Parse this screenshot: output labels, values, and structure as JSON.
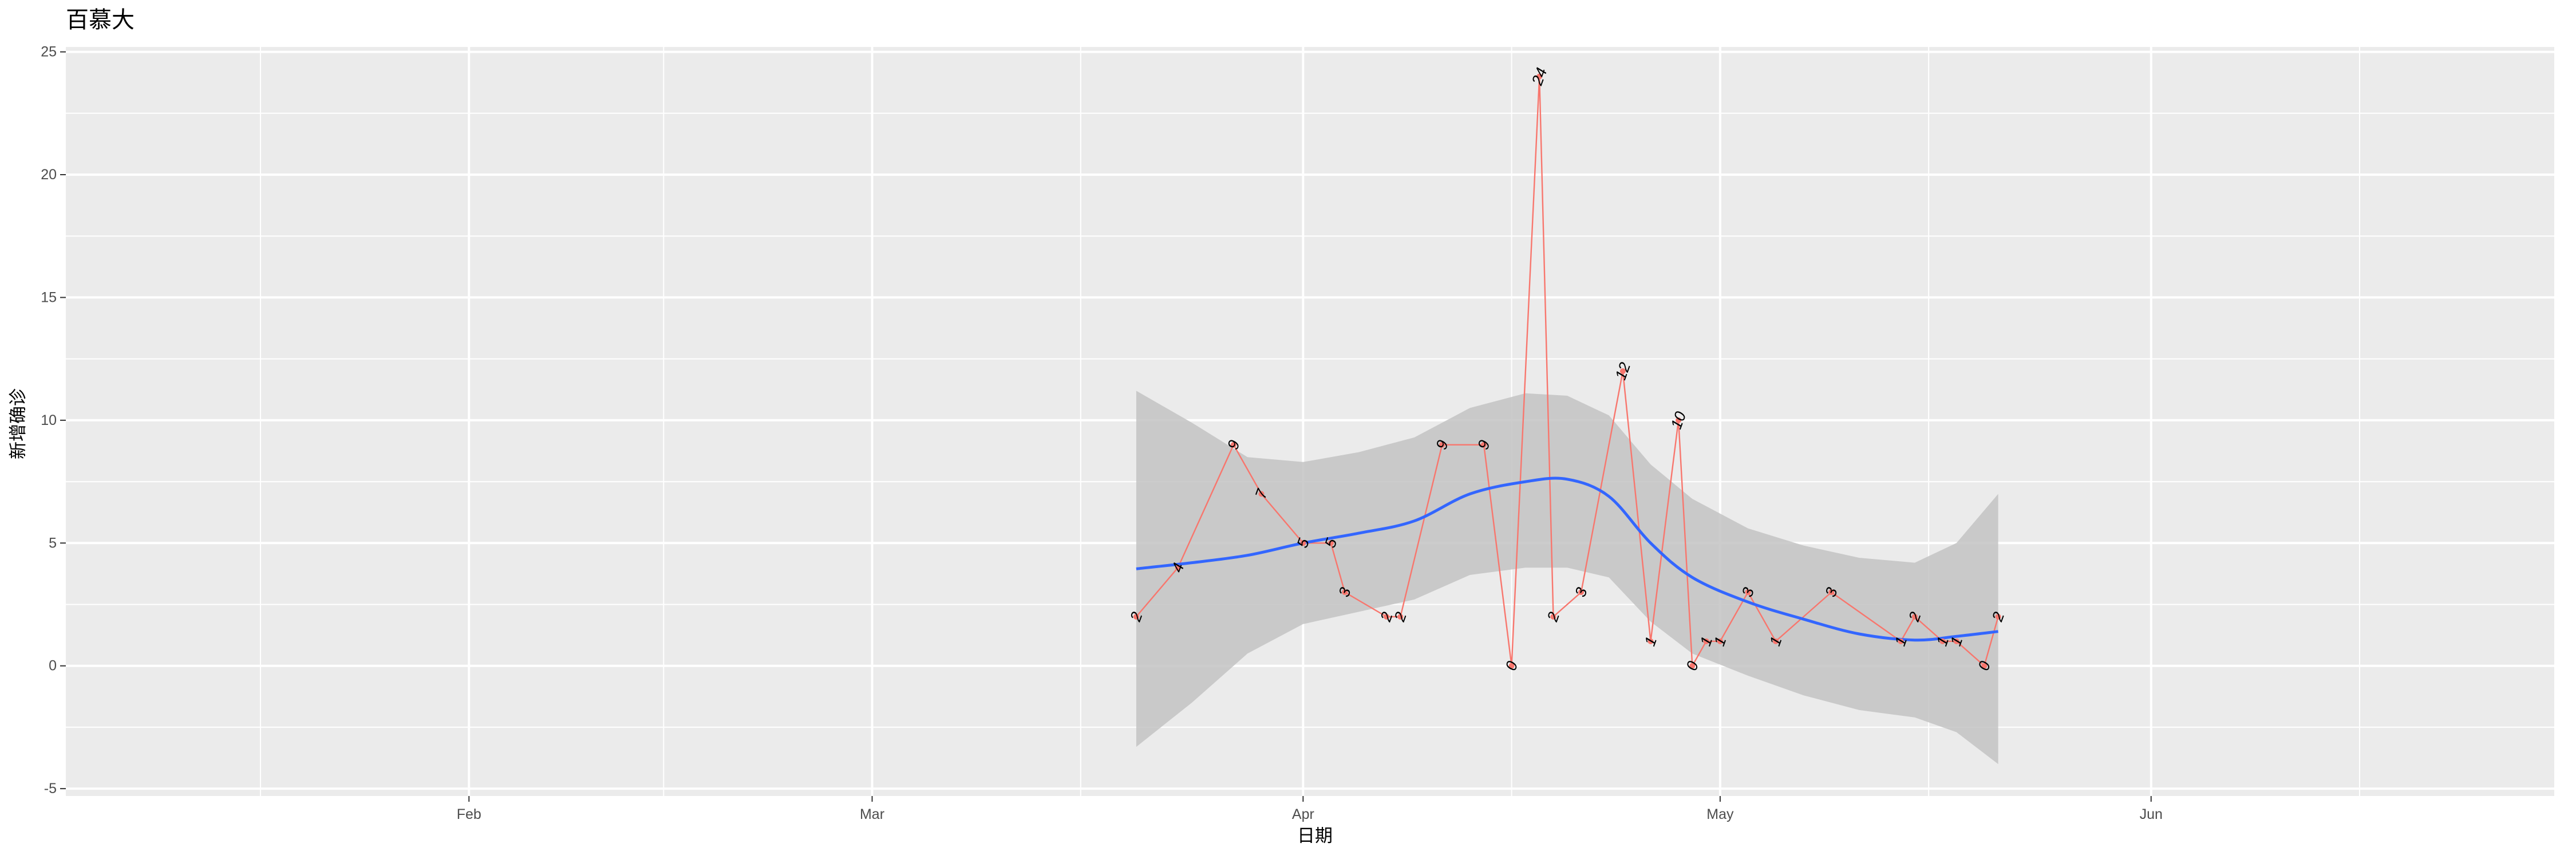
{
  "chart_data": {
    "type": "line",
    "title": "百慕大",
    "xlabel": "日期",
    "ylabel": "新增确诊",
    "x_tick_labels": [
      "Feb",
      "Mar",
      "Apr",
      "May",
      "Jun"
    ],
    "x_ticks": [
      "2020-02-01",
      "2020-03-01",
      "2020-04-01",
      "2020-05-01",
      "2020-06-01"
    ],
    "x_minor_ticks": [
      "2020-01-17",
      "2020-02-15",
      "2020-03-16",
      "2020-04-16",
      "2020-05-16",
      "2020-06-16"
    ],
    "xlim": [
      "2020-01-03",
      "2020-06-30"
    ],
    "y_ticks": [
      -5,
      0,
      5,
      10,
      15,
      20,
      25
    ],
    "y_tick_labels": [
      "-5",
      "0",
      "5",
      "10",
      "15",
      "20",
      "25"
    ],
    "ylim": [
      -5.3,
      25.2
    ],
    "grid": true,
    "colors": {
      "panel": "#ebebeb",
      "grid": "#ffffff",
      "series_line": "#f8766d",
      "points": "#f8766d",
      "smooth": "#3366ff",
      "ribbon": "#c3c3c3"
    },
    "series": [
      {
        "points": [
          {
            "x": "2020-03-20",
            "y": 2,
            "label": "2"
          },
          {
            "x": "2020-03-23",
            "y": 4,
            "label": "4"
          },
          {
            "x": "2020-03-27",
            "y": 9,
            "label": "9"
          },
          {
            "x": "2020-03-29",
            "y": 7,
            "label": "7"
          },
          {
            "x": "2020-04-01",
            "y": 5,
            "label": "5"
          },
          {
            "x": "2020-04-03",
            "y": 5,
            "label": "5"
          },
          {
            "x": "2020-04-04",
            "y": 3,
            "label": "3"
          },
          {
            "x": "2020-04-07",
            "y": 2,
            "label": "2"
          },
          {
            "x": "2020-04-08",
            "y": 2,
            "label": "2"
          },
          {
            "x": "2020-04-11",
            "y": 9,
            "label": "9"
          },
          {
            "x": "2020-04-14",
            "y": 9,
            "label": "9"
          },
          {
            "x": "2020-04-16",
            "y": 0,
            "label": "0"
          },
          {
            "x": "2020-04-18",
            "y": 24,
            "label": "24"
          },
          {
            "x": "2020-04-19",
            "y": 2,
            "label": "2"
          },
          {
            "x": "2020-04-21",
            "y": 3,
            "label": "3"
          },
          {
            "x": "2020-04-24",
            "y": 12,
            "label": "12"
          },
          {
            "x": "2020-04-26",
            "y": 1,
            "label": "1"
          },
          {
            "x": "2020-04-28",
            "y": 10,
            "label": "10"
          },
          {
            "x": "2020-04-29",
            "y": 0,
            "label": "0"
          },
          {
            "x": "2020-04-30",
            "y": 1,
            "label": "1"
          },
          {
            "x": "2020-05-01",
            "y": 1,
            "label": "1"
          },
          {
            "x": "2020-05-03",
            "y": 3,
            "label": "3"
          },
          {
            "x": "2020-05-05",
            "y": 1,
            "label": "1"
          },
          {
            "x": "2020-05-09",
            "y": 3,
            "label": "3"
          },
          {
            "x": "2020-05-14",
            "y": 1,
            "label": "1"
          },
          {
            "x": "2020-05-15",
            "y": 2,
            "label": "2"
          },
          {
            "x": "2020-05-17",
            "y": 1,
            "label": "1"
          },
          {
            "x": "2020-05-18",
            "y": 1,
            "label": "1"
          },
          {
            "x": "2020-05-20",
            "y": 0,
            "label": "0"
          },
          {
            "x": "2020-05-21",
            "y": 2,
            "label": "2"
          }
        ]
      }
    ],
    "smooth": {
      "method": "loess",
      "fit": [
        {
          "x": "2020-03-20",
          "y": 3.95,
          "lower": -3.3,
          "upper": 11.2
        },
        {
          "x": "2020-03-24",
          "y": 4.2,
          "lower": -1.5,
          "upper": 9.9
        },
        {
          "x": "2020-03-28",
          "y": 4.5,
          "lower": 0.5,
          "upper": 8.5
        },
        {
          "x": "2020-04-01",
          "y": 5.0,
          "lower": 1.7,
          "upper": 8.3
        },
        {
          "x": "2020-04-05",
          "y": 5.4,
          "lower": 2.2,
          "upper": 8.7
        },
        {
          "x": "2020-04-09",
          "y": 5.9,
          "lower": 2.7,
          "upper": 9.3
        },
        {
          "x": "2020-04-13",
          "y": 7.0,
          "lower": 3.7,
          "upper": 10.5
        },
        {
          "x": "2020-04-17",
          "y": 7.5,
          "lower": 4.0,
          "upper": 11.1
        },
        {
          "x": "2020-04-20",
          "y": 7.6,
          "lower": 4.0,
          "upper": 11.0
        },
        {
          "x": "2020-04-23",
          "y": 6.9,
          "lower": 3.6,
          "upper": 10.2
        },
        {
          "x": "2020-04-26",
          "y": 5.0,
          "lower": 1.8,
          "upper": 8.2
        },
        {
          "x": "2020-04-29",
          "y": 3.6,
          "lower": 0.5,
          "upper": 6.8
        },
        {
          "x": "2020-05-03",
          "y": 2.6,
          "lower": -0.4,
          "upper": 5.6
        },
        {
          "x": "2020-05-07",
          "y": 1.9,
          "lower": -1.2,
          "upper": 4.9
        },
        {
          "x": "2020-05-11",
          "y": 1.3,
          "lower": -1.8,
          "upper": 4.4
        },
        {
          "x": "2020-05-15",
          "y": 1.05,
          "lower": -2.1,
          "upper": 4.2
        },
        {
          "x": "2020-05-18",
          "y": 1.2,
          "lower": -2.7,
          "upper": 5.0
        },
        {
          "x": "2020-05-21",
          "y": 1.4,
          "lower": -4.0,
          "upper": 7.0
        }
      ]
    }
  }
}
